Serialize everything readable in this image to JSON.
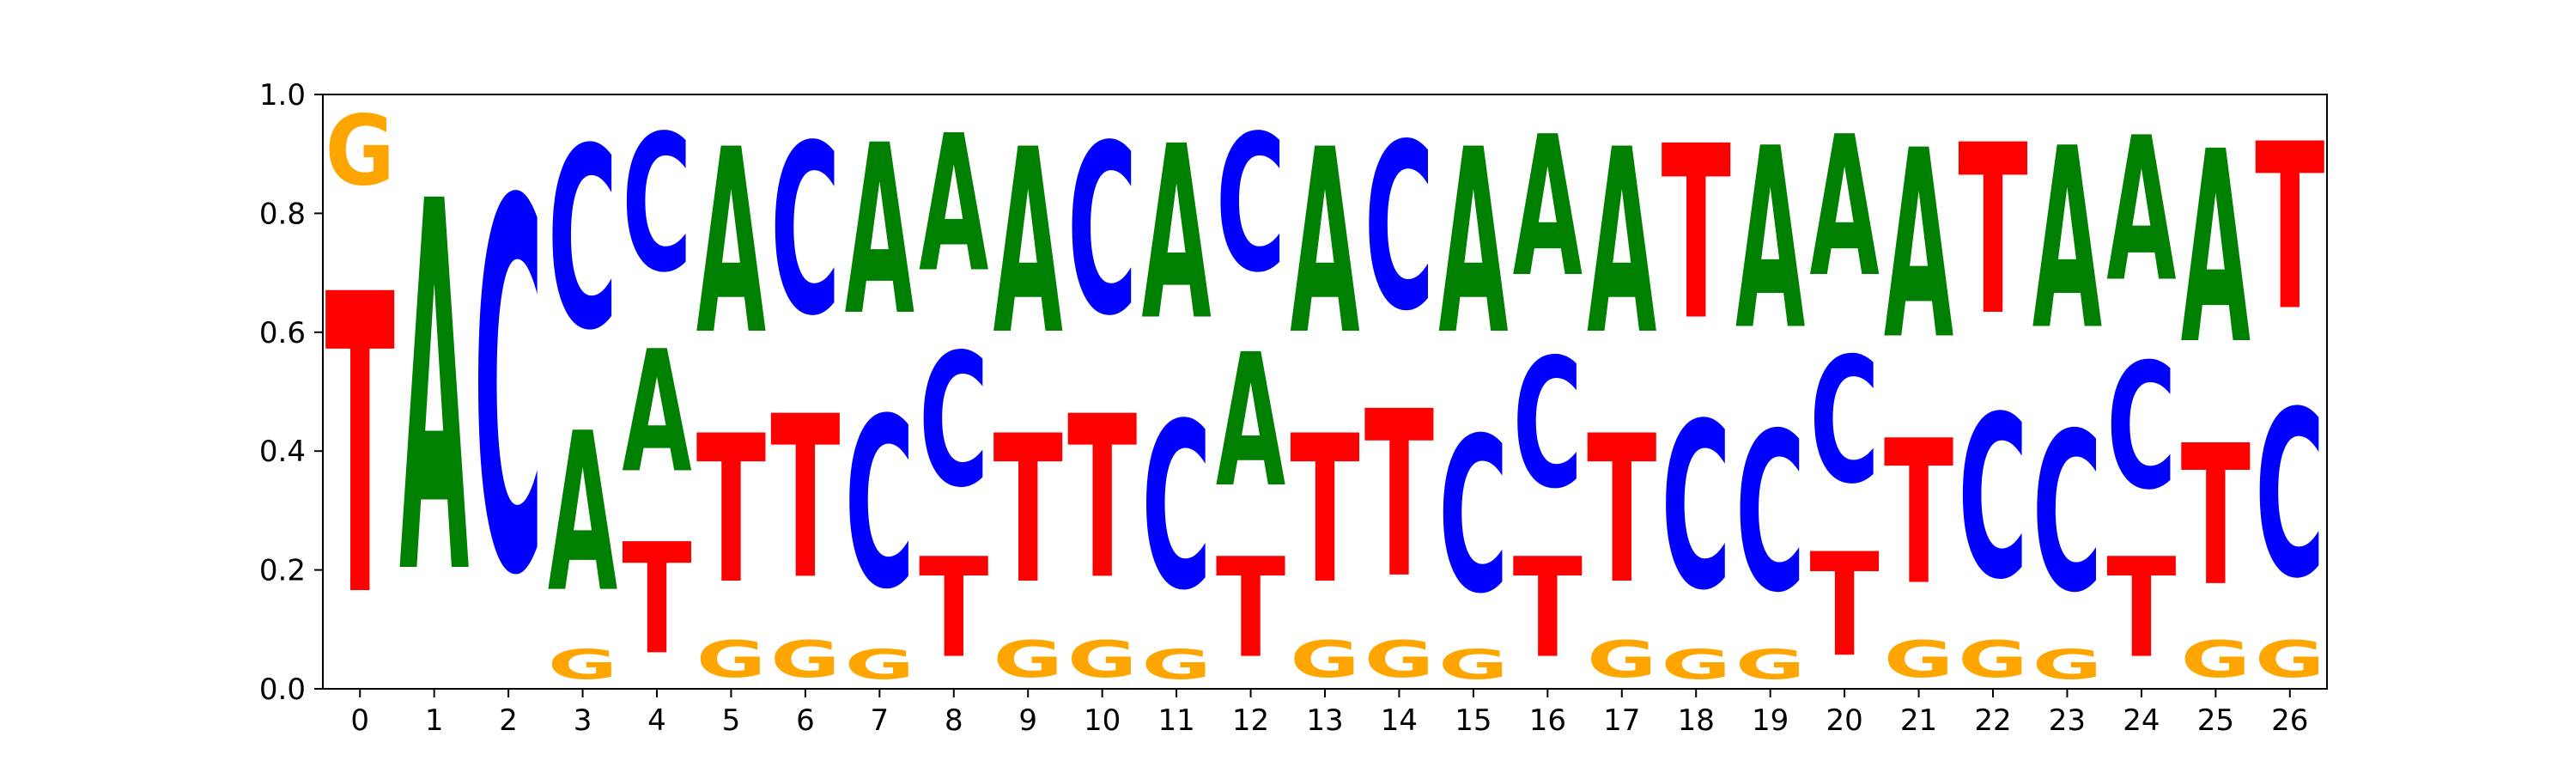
{
  "chart_data": {
    "type": "sequence-logo",
    "title": "",
    "xlabel": "",
    "ylabel": "",
    "ylim": [
      0,
      1.0
    ],
    "x_ticks": [
      "0",
      "1",
      "2",
      "3",
      "4",
      "5",
      "6",
      "7",
      "8",
      "9",
      "10",
      "11",
      "12",
      "13",
      "14",
      "15",
      "16",
      "17",
      "18",
      "19",
      "20",
      "21",
      "22",
      "23",
      "24",
      "25",
      "26"
    ],
    "y_ticks": [
      "0.0",
      "0.2",
      "0.4",
      "0.6",
      "0.8",
      "1.0"
    ],
    "letter_colors": {
      "A": "#008000",
      "C": "#0000ff",
      "G": "#ffa500",
      "T": "#ff0000"
    },
    "positions": [
      {
        "x": "0",
        "letters": [
          [
            "T",
            0.81
          ],
          [
            "C",
            0.0
          ],
          [
            "A",
            0.0
          ],
          [
            "G",
            0.19
          ]
        ]
      },
      {
        "x": "1",
        "letters": [
          [
            "T",
            0.0
          ],
          [
            "A",
            1.0
          ]
        ]
      },
      {
        "x": "2",
        "letters": [
          [
            "C",
            1.0
          ]
        ]
      },
      {
        "x": "3",
        "letters": [
          [
            "G",
            0.08
          ],
          [
            "A",
            0.43
          ],
          [
            "C",
            0.49
          ]
        ]
      },
      {
        "x": "4",
        "letters": [
          [
            "T",
            0.3
          ],
          [
            "A",
            0.33
          ],
          [
            "C",
            0.37
          ]
        ]
      },
      {
        "x": "5",
        "letters": [
          [
            "G",
            0.1
          ],
          [
            "T",
            0.4
          ],
          [
            "A",
            0.5
          ]
        ]
      },
      {
        "x": "6",
        "letters": [
          [
            "G",
            0.1
          ],
          [
            "T",
            0.44
          ],
          [
            "C",
            0.46
          ]
        ]
      },
      {
        "x": "7",
        "letters": [
          [
            "G",
            0.08
          ],
          [
            "C",
            0.46
          ],
          [
            "A",
            0.46
          ]
        ]
      },
      {
        "x": "8",
        "letters": [
          [
            "T",
            0.27
          ],
          [
            "C",
            0.36
          ],
          [
            "A",
            0.37
          ]
        ]
      },
      {
        "x": "9",
        "letters": [
          [
            "G",
            0.1
          ],
          [
            "T",
            0.4
          ],
          [
            "A",
            0.5
          ]
        ]
      },
      {
        "x": "10",
        "letters": [
          [
            "G",
            0.1
          ],
          [
            "T",
            0.44
          ],
          [
            "C",
            0.46
          ]
        ]
      },
      {
        "x": "11",
        "letters": [
          [
            "G",
            0.08
          ],
          [
            "C",
            0.45
          ],
          [
            "A",
            0.47
          ]
        ]
      },
      {
        "x": "12",
        "letters": [
          [
            "T",
            0.27
          ],
          [
            "A",
            0.36
          ],
          [
            "C",
            0.37
          ]
        ]
      },
      {
        "x": "13",
        "letters": [
          [
            "G",
            0.1
          ],
          [
            "T",
            0.4
          ],
          [
            "A",
            0.5
          ]
        ]
      },
      {
        "x": "14",
        "letters": [
          [
            "G",
            0.1
          ],
          [
            "T",
            0.45
          ],
          [
            "C",
            0.45
          ]
        ]
      },
      {
        "x": "15",
        "letters": [
          [
            "G",
            0.08
          ],
          [
            "C",
            0.42
          ],
          [
            "A",
            0.5
          ]
        ]
      },
      {
        "x": "16",
        "letters": [
          [
            "T",
            0.27
          ],
          [
            "C",
            0.35
          ],
          [
            "A",
            0.38
          ]
        ]
      },
      {
        "x": "17",
        "letters": [
          [
            "G",
            0.1
          ],
          [
            "T",
            0.4
          ],
          [
            "A",
            0.5
          ]
        ]
      },
      {
        "x": "18",
        "letters": [
          [
            "G",
            0.08
          ],
          [
            "C",
            0.45
          ],
          [
            "T",
            0.47
          ]
        ]
      },
      {
        "x": "19",
        "letters": [
          [
            "G",
            0.08
          ],
          [
            "C",
            0.43
          ],
          [
            "A",
            0.49
          ]
        ]
      },
      {
        "x": "20",
        "letters": [
          [
            "T",
            0.28
          ],
          [
            "C",
            0.34
          ],
          [
            "A",
            0.38
          ]
        ]
      },
      {
        "x": "21",
        "letters": [
          [
            "G",
            0.1
          ],
          [
            "T",
            0.39
          ],
          [
            "A",
            0.51
          ]
        ]
      },
      {
        "x": "22",
        "letters": [
          [
            "G",
            0.1
          ],
          [
            "C",
            0.44
          ],
          [
            "T",
            0.46
          ]
        ]
      },
      {
        "x": "23",
        "letters": [
          [
            "G",
            0.08
          ],
          [
            "C",
            0.43
          ],
          [
            "A",
            0.49
          ]
        ]
      },
      {
        "x": "24",
        "letters": [
          [
            "T",
            0.27
          ],
          [
            "C",
            0.34
          ],
          [
            "A",
            0.39
          ]
        ]
      },
      {
        "x": "25",
        "letters": [
          [
            "G",
            0.1
          ],
          [
            "T",
            0.38
          ],
          [
            "A",
            0.52
          ]
        ]
      },
      {
        "x": "26",
        "letters": [
          [
            "G",
            0.1
          ],
          [
            "C",
            0.45
          ],
          [
            "T",
            0.45
          ]
        ]
      }
    ]
  }
}
